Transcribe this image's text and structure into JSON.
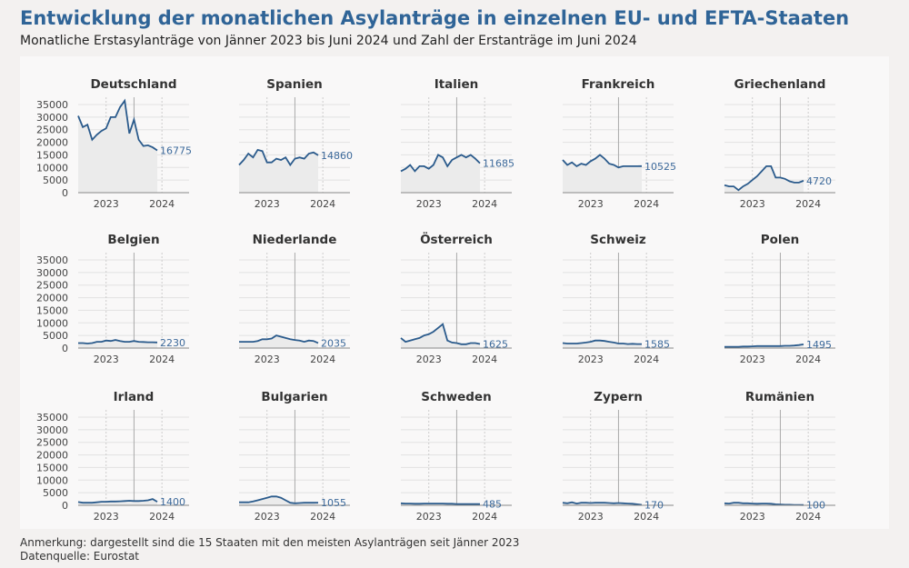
{
  "title": "Entwicklung der monatlichen Asylanträge in einzelnen EU- und EFTA-Staaten",
  "subtitle": "Monatliche Erstasylanträge von Jänner 2023 bis Juni 2024 und Zahl der Erstanträge im Juni 2024",
  "note": "Anmerkung: dargestellt sind die 15 Staaten mit den meisten Asylanträgen seit Jänner 2023",
  "source": "Datenquelle: Eurostat",
  "colors": {
    "line": "#2b5b8c",
    "area": "#ebebeb",
    "label": "#3d6a9b",
    "title": "#2f6497"
  },
  "chart_data": {
    "type": "line",
    "layout": "small-multiples 3x5",
    "x_start": "2023-01",
    "x_end": "2024-06",
    "xticks": [
      "2023",
      "2024"
    ],
    "yticks": [
      0,
      5000,
      10000,
      15000,
      20000,
      25000,
      30000,
      35000
    ],
    "ylim": [
      0,
      35000
    ],
    "grid": true,
    "series": [
      {
        "name": "Deutschland",
        "last": "16775",
        "values": [
          30500,
          26000,
          27000,
          21000,
          23000,
          24500,
          25500,
          30000,
          30000,
          34000,
          36500,
          23500,
          29000,
          21000,
          18500,
          18800,
          18000,
          16775
        ]
      },
      {
        "name": "Spanien",
        "last": "14860",
        "values": [
          11000,
          13000,
          15500,
          14000,
          17000,
          16500,
          12000,
          12000,
          13500,
          13000,
          14000,
          11000,
          13500,
          14000,
          13500,
          15500,
          16000,
          14860
        ]
      },
      {
        "name": "Italien",
        "last": "11685",
        "values": [
          8500,
          9500,
          11000,
          8500,
          10500,
          10500,
          9500,
          11000,
          15000,
          14000,
          10500,
          13000,
          14000,
          15000,
          14000,
          15000,
          13500,
          11685
        ]
      },
      {
        "name": "Frankreich",
        "last": "10525",
        "values": [
          13000,
          11000,
          12000,
          10500,
          11500,
          11000,
          12500,
          13500,
          15000,
          13500,
          11500,
          11000,
          10000,
          10500,
          10500,
          10500,
          10500,
          10525
        ]
      },
      {
        "name": "Griechenland",
        "last": "4720",
        "values": [
          3000,
          2500,
          2500,
          1000,
          2500,
          3500,
          5000,
          6500,
          8500,
          10500,
          10500,
          6000,
          6000,
          5500,
          4500,
          4000,
          4000,
          4720
        ]
      },
      {
        "name": "Belgien",
        "last": "2230",
        "values": [
          2000,
          2000,
          1800,
          2000,
          2500,
          2500,
          3000,
          2800,
          3200,
          2800,
          2500,
          2500,
          2800,
          2500,
          2400,
          2300,
          2300,
          2230
        ]
      },
      {
        "name": "Niederlande",
        "last": "2035",
        "values": [
          2500,
          2500,
          2500,
          2500,
          2800,
          3500,
          3500,
          3800,
          5000,
          4500,
          4000,
          3500,
          3200,
          3000,
          2500,
          3000,
          2800,
          2035
        ]
      },
      {
        "name": "Österreich",
        "last": "1625",
        "values": [
          4000,
          2500,
          3000,
          3500,
          4000,
          5000,
          5500,
          6500,
          8000,
          9500,
          3000,
          2200,
          2000,
          1500,
          1500,
          2000,
          2000,
          1625
        ]
      },
      {
        "name": "Schweiz",
        "last": "1585",
        "values": [
          2000,
          1800,
          1800,
          1800,
          2000,
          2200,
          2500,
          3000,
          3000,
          2800,
          2500,
          2200,
          1800,
          1800,
          1600,
          1700,
          1600,
          1585
        ]
      },
      {
        "name": "Polen",
        "last": "1495",
        "values": [
          500,
          500,
          500,
          500,
          600,
          600,
          700,
          800,
          800,
          800,
          800,
          800,
          800,
          900,
          900,
          1000,
          1200,
          1495
        ]
      },
      {
        "name": "Irland",
        "last": "1400",
        "values": [
          1300,
          1000,
          1000,
          1000,
          1200,
          1400,
          1400,
          1500,
          1500,
          1600,
          1700,
          1800,
          1700,
          1700,
          1800,
          2000,
          2500,
          1400
        ]
      },
      {
        "name": "Bulgarien",
        "last": "1055",
        "values": [
          1200,
          1200,
          1200,
          1500,
          2000,
          2500,
          3000,
          3500,
          3500,
          3000,
          2000,
          1000,
          800,
          900,
          1000,
          1000,
          1000,
          1055
        ]
      },
      {
        "name": "Schweden",
        "last": "485",
        "values": [
          800,
          700,
          700,
          600,
          600,
          700,
          700,
          700,
          700,
          700,
          600,
          600,
          500,
          500,
          500,
          500,
          500,
          485
        ]
      },
      {
        "name": "Zypern",
        "last": "170",
        "values": [
          1000,
          800,
          1200,
          700,
          1000,
          1000,
          900,
          1000,
          1000,
          1000,
          900,
          800,
          900,
          800,
          700,
          600,
          400,
          170
        ]
      },
      {
        "name": "Rumänien",
        "last": "100",
        "values": [
          800,
          700,
          1000,
          1000,
          800,
          800,
          700,
          600,
          700,
          700,
          600,
          400,
          300,
          200,
          200,
          150,
          150,
          100
        ]
      }
    ]
  }
}
